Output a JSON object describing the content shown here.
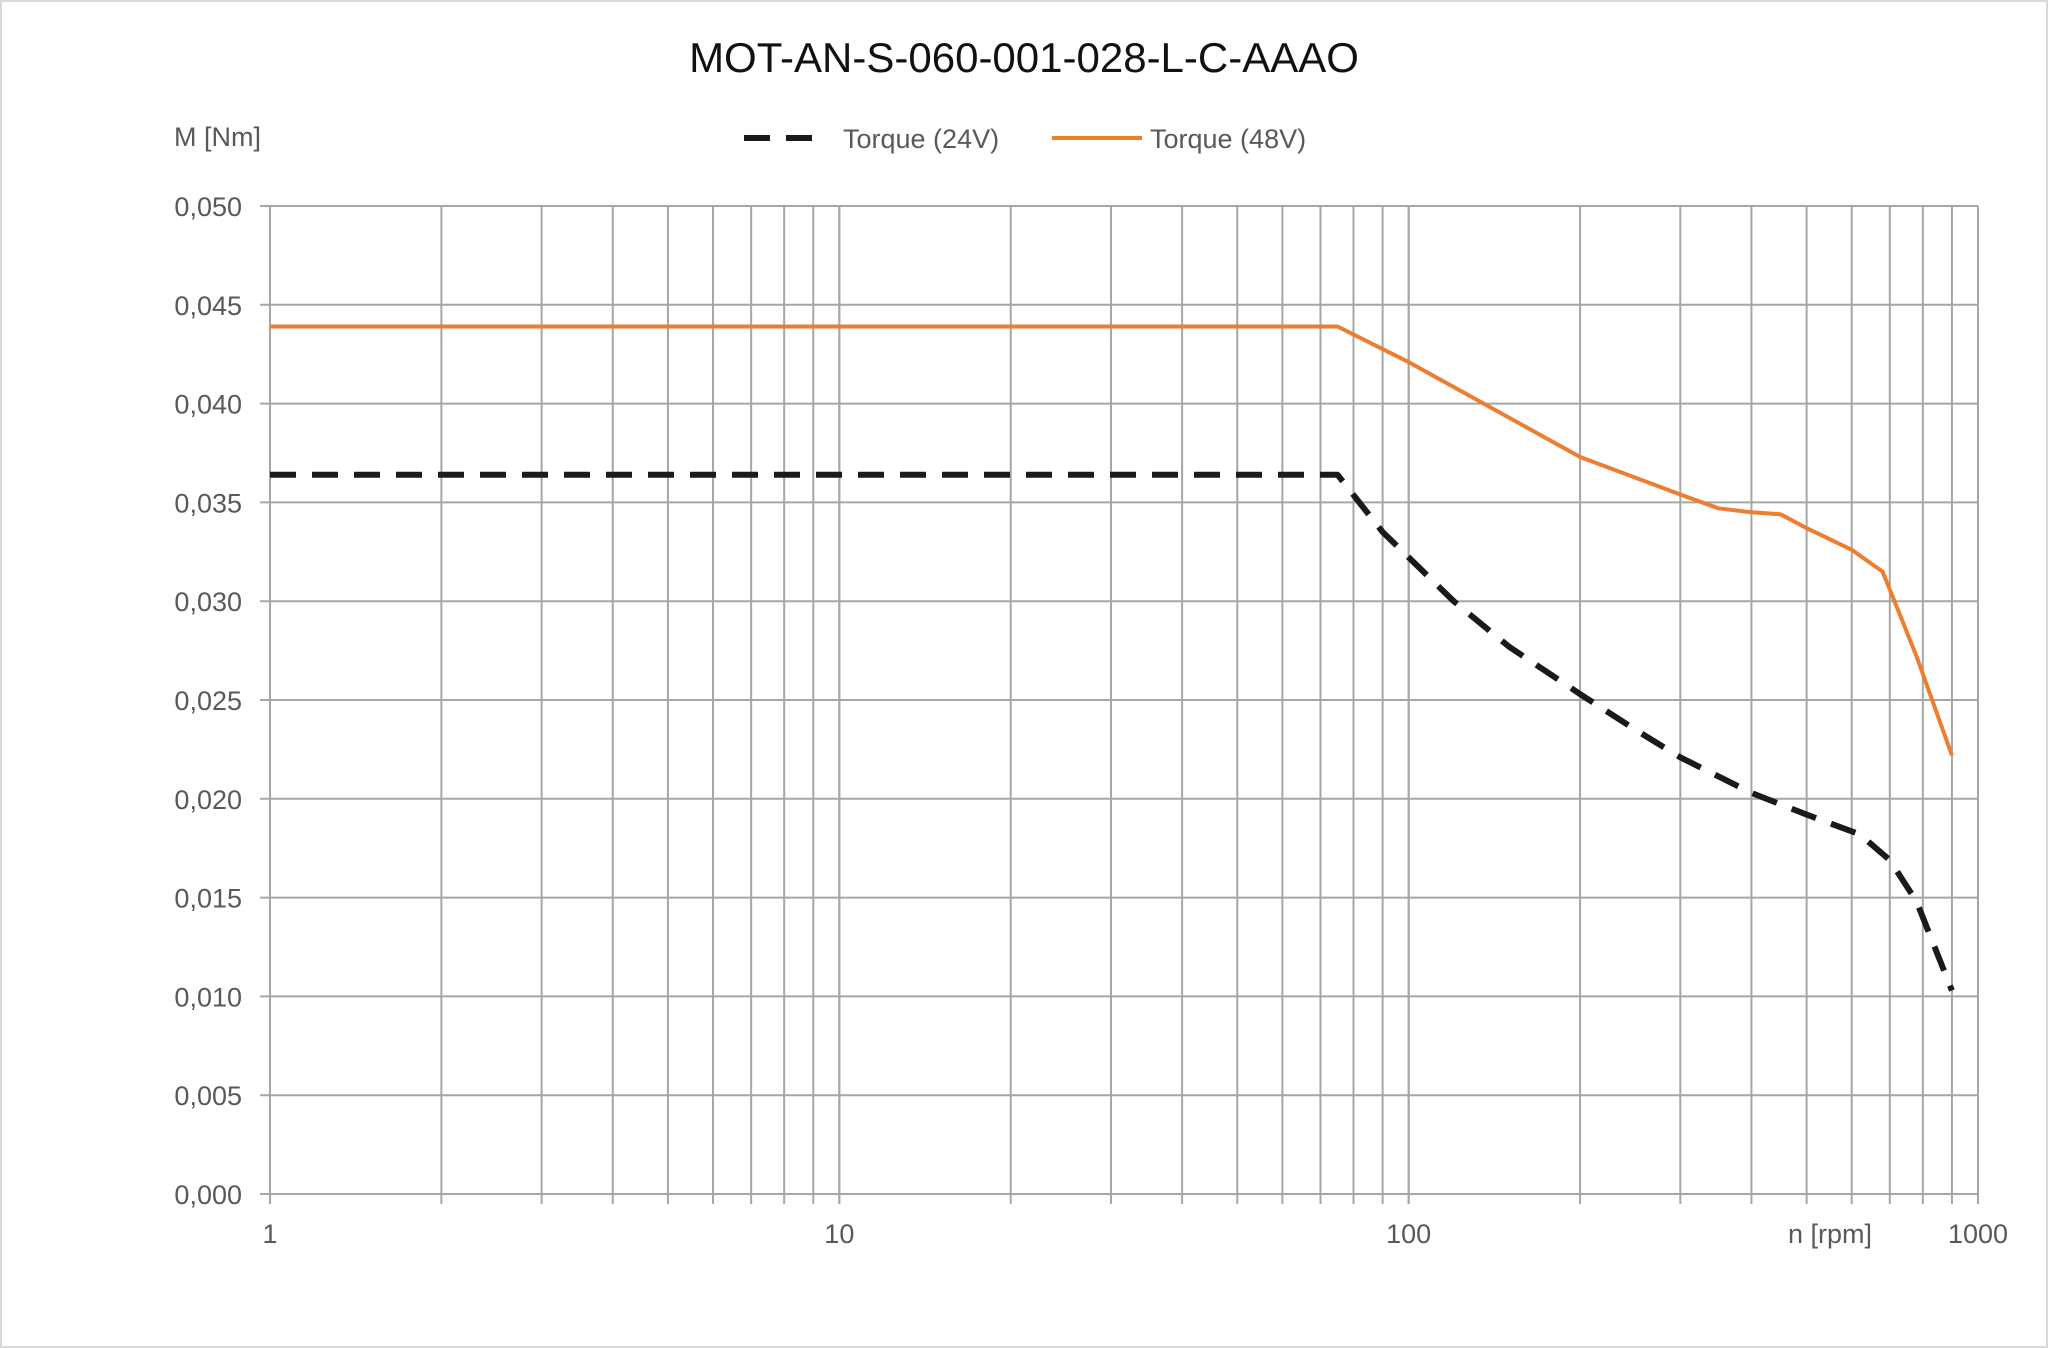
{
  "chart_data": {
    "type": "line",
    "title": "MOT-AN-S-060-001-028-L-C-AAAO",
    "xlabel": "n [rpm]",
    "ylabel": "M [Nm]",
    "x_scale": "log",
    "xlim": [
      1,
      1000
    ],
    "ylim": [
      0,
      0.05
    ],
    "grid": true,
    "legend_position": "top",
    "x_tick_labels": [
      {
        "value": 1,
        "label": "1"
      },
      {
        "value": 10,
        "label": "10"
      },
      {
        "value": 100,
        "label": "100"
      },
      {
        "value": 1000,
        "label": "1000"
      }
    ],
    "y_tick_labels": [
      {
        "value": 0,
        "label": "0,000"
      },
      {
        "value": 0.005,
        "label": "0,005"
      },
      {
        "value": 0.01,
        "label": "0,010"
      },
      {
        "value": 0.015,
        "label": "0,015"
      },
      {
        "value": 0.02,
        "label": "0,020"
      },
      {
        "value": 0.025,
        "label": "0,025"
      },
      {
        "value": 0.03,
        "label": "0,030"
      },
      {
        "value": 0.035,
        "label": "0,035"
      },
      {
        "value": 0.04,
        "label": "0,040"
      },
      {
        "value": 0.045,
        "label": "0,045"
      },
      {
        "value": 0.05,
        "label": "0,050"
      }
    ],
    "series": [
      {
        "name": "Torque (24V)",
        "color": "#1a1a1a",
        "dash": true,
        "x": [
          1,
          75,
          90,
          120,
          150,
          200,
          250,
          300,
          400,
          500,
          620,
          700,
          780,
          900
        ],
        "y": [
          0.0364,
          0.0364,
          0.0335,
          0.03,
          0.0277,
          0.0253,
          0.0235,
          0.0221,
          0.0203,
          0.0192,
          0.0182,
          0.0169,
          0.0148,
          0.0103
        ]
      },
      {
        "name": "Torque (48V)",
        "color": "#ed7d31",
        "dash": false,
        "x": [
          1,
          75,
          100,
          200,
          300,
          350,
          400,
          450,
          500,
          600,
          680,
          780,
          900
        ],
        "y": [
          0.0439,
          0.0439,
          0.0421,
          0.0373,
          0.0354,
          0.0347,
          0.0345,
          0.0344,
          0.0337,
          0.0326,
          0.0315,
          0.0272,
          0.0222
        ]
      }
    ]
  }
}
